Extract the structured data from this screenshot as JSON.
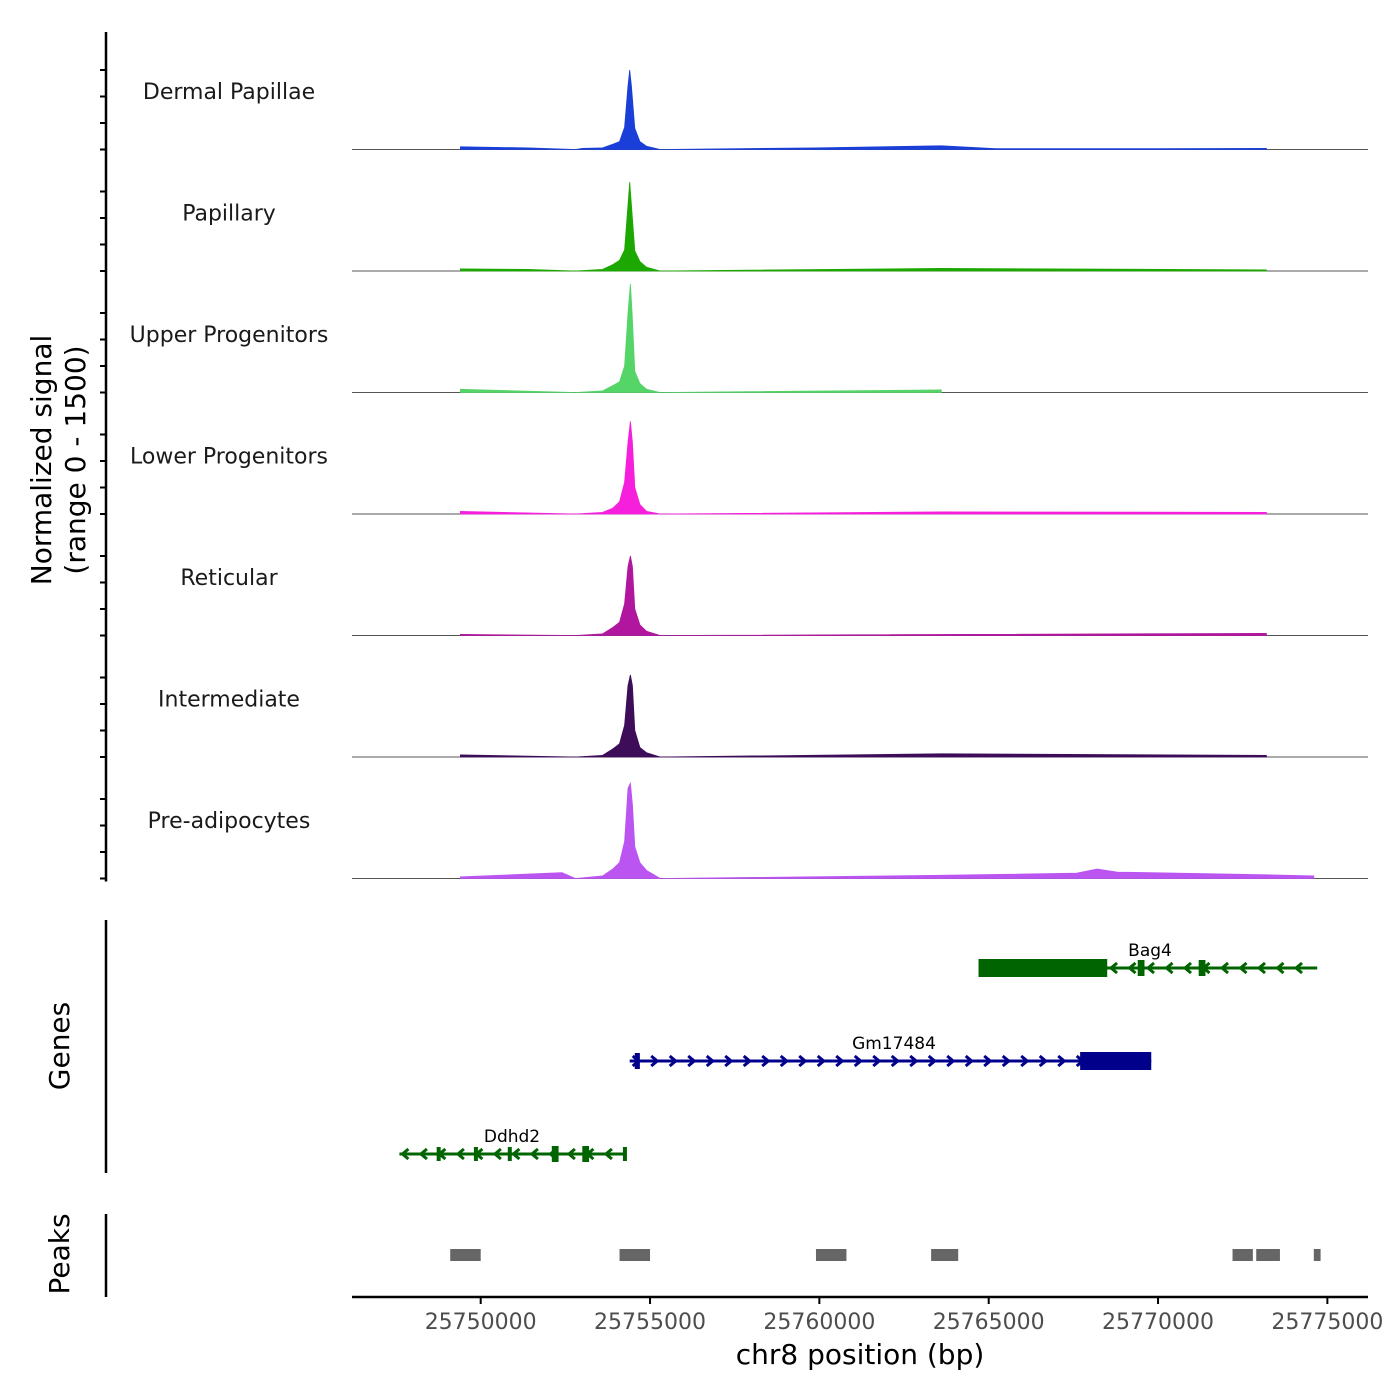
{
  "chart_data": {
    "type": "coverage",
    "chromosome": "chr8",
    "xlabel": "chr8 position (bp)",
    "xlim": [
      25746200,
      25776200
    ],
    "x_ticks": [
      25750000,
      25755000,
      25760000,
      25765000,
      25770000,
      25775000
    ],
    "x_tick_labels": [
      "25750000",
      "25755000",
      "25760000",
      "25765000",
      "25770000",
      "25775000"
    ],
    "coverage_axis_label": [
      "Normalized signal",
      "(range 0 - 1500)"
    ],
    "ylim": [
      0,
      1500
    ],
    "genes_axis_label": "Genes",
    "peaks_axis_label": "Peaks",
    "tracks": [
      {
        "name": "Dermal Papillae",
        "color": "#1a3fd8",
        "points": [
          [
            25752800,
            0
          ],
          [
            25753600,
            30
          ],
          [
            25753900,
            100
          ],
          [
            25754100,
            150
          ],
          [
            25754250,
            420
          ],
          [
            25754350,
            1200
          ],
          [
            25754400,
            1500
          ],
          [
            25754450,
            1200
          ],
          [
            25754550,
            400
          ],
          [
            25754700,
            150
          ],
          [
            25754900,
            60
          ],
          [
            25755300,
            0
          ],
          [
            25749400,
            50
          ],
          [
            25751400,
            30
          ],
          [
            25753000,
            20
          ],
          [
            25759900,
            30
          ],
          [
            25763600,
            70
          ],
          [
            25765200,
            15
          ],
          [
            25770000,
            15
          ],
          [
            25773200,
            20
          ]
        ]
      },
      {
        "name": "Papillary",
        "color": "#1ca800",
        "points": [
          [
            25752800,
            0
          ],
          [
            25753600,
            30
          ],
          [
            25753900,
            120
          ],
          [
            25754100,
            200
          ],
          [
            25754250,
            400
          ],
          [
            25754350,
            1250
          ],
          [
            25754400,
            1680
          ],
          [
            25754450,
            1250
          ],
          [
            25754550,
            380
          ],
          [
            25754700,
            180
          ],
          [
            25754900,
            70
          ],
          [
            25755300,
            0
          ],
          [
            25749400,
            40
          ],
          [
            25751400,
            30
          ],
          [
            25763600,
            50
          ],
          [
            25773200,
            20
          ]
        ]
      },
      {
        "name": "Upper Progenitors",
        "color": "#55d468",
        "points": [
          [
            25752800,
            0
          ],
          [
            25753600,
            30
          ],
          [
            25753900,
            130
          ],
          [
            25754100,
            200
          ],
          [
            25754250,
            500
          ],
          [
            25754350,
            1500
          ],
          [
            25754420,
            2050
          ],
          [
            25754470,
            1500
          ],
          [
            25754550,
            400
          ],
          [
            25754700,
            170
          ],
          [
            25754900,
            60
          ],
          [
            25755300,
            0
          ],
          [
            25749400,
            60
          ],
          [
            25763600,
            50
          ]
        ]
      },
      {
        "name": "Lower Progenitors",
        "color": "#f51fdc",
        "points": [
          [
            25752800,
            0
          ],
          [
            25753600,
            30
          ],
          [
            25753900,
            110
          ],
          [
            25754100,
            230
          ],
          [
            25754250,
            600
          ],
          [
            25754350,
            1350
          ],
          [
            25754420,
            1750
          ],
          [
            25754480,
            1350
          ],
          [
            25754550,
            500
          ],
          [
            25754700,
            180
          ],
          [
            25754900,
            50
          ],
          [
            25755300,
            0
          ],
          [
            25749400,
            50
          ],
          [
            25763600,
            40
          ],
          [
            25773200,
            30
          ]
        ]
      },
      {
        "name": "Reticular",
        "color": "#b0169e",
        "points": [
          [
            25752800,
            0
          ],
          [
            25753600,
            30
          ],
          [
            25753900,
            150
          ],
          [
            25754100,
            250
          ],
          [
            25754250,
            600
          ],
          [
            25754350,
            1300
          ],
          [
            25754420,
            1500
          ],
          [
            25754480,
            1300
          ],
          [
            25754550,
            500
          ],
          [
            25754700,
            200
          ],
          [
            25754900,
            80
          ],
          [
            25755300,
            0
          ],
          [
            25749400,
            20
          ],
          [
            25773200,
            40
          ]
        ]
      },
      {
        "name": "Intermediate",
        "color": "#3d0d59",
        "points": [
          [
            25752800,
            0
          ],
          [
            25753600,
            30
          ],
          [
            25753900,
            150
          ],
          [
            25754100,
            250
          ],
          [
            25754250,
            600
          ],
          [
            25754350,
            1350
          ],
          [
            25754420,
            1550
          ],
          [
            25754480,
            1350
          ],
          [
            25754550,
            500
          ],
          [
            25754700,
            180
          ],
          [
            25754900,
            80
          ],
          [
            25755300,
            0
          ],
          [
            25749400,
            40
          ],
          [
            25763600,
            60
          ],
          [
            25773200,
            30
          ]
        ]
      },
      {
        "name": "Pre-adipocytes",
        "color": "#bb55f2",
        "points": [
          [
            25752800,
            0
          ],
          [
            25753600,
            50
          ],
          [
            25753900,
            180
          ],
          [
            25754100,
            300
          ],
          [
            25754250,
            700
          ],
          [
            25754350,
            1700
          ],
          [
            25754420,
            1800
          ],
          [
            25754480,
            1400
          ],
          [
            25754550,
            600
          ],
          [
            25754700,
            300
          ],
          [
            25754900,
            150
          ],
          [
            25755300,
            0
          ],
          [
            25749400,
            30
          ],
          [
            25752400,
            110
          ],
          [
            25763600,
            60
          ],
          [
            25767600,
            100
          ],
          [
            25768200,
            180
          ],
          [
            25768800,
            120
          ],
          [
            25773200,
            70
          ],
          [
            25774600,
            50
          ]
        ]
      }
    ],
    "genes": [
      {
        "name": "Bag4",
        "strand": "-",
        "color": "#006400",
        "start": 25764700,
        "end": 25774700,
        "exons": [
          [
            25764700,
            25768500,
            "thick"
          ],
          [
            25769400,
            25769600,
            "thin"
          ],
          [
            25771200,
            25771400,
            "thin"
          ]
        ]
      },
      {
        "name": "Gm17484",
        "strand": "+",
        "color": "#00008b",
        "start": 25754400,
        "end": 25769800,
        "exons": [
          [
            25754550,
            25754700,
            "thin"
          ],
          [
            25767700,
            25769800,
            "thick"
          ]
        ]
      },
      {
        "name": "Ddhd2",
        "strand": "-",
        "color": "#006400",
        "start": 25747600,
        "end": 25754300,
        "exons": [
          [
            25748700,
            25748800,
            "tick"
          ],
          [
            25749800,
            25749900,
            "tick"
          ],
          [
            25750800,
            25750900,
            "tick"
          ],
          [
            25752100,
            25752300,
            "thin"
          ],
          [
            25753000,
            25753200,
            "thin"
          ],
          [
            25754200,
            25754300,
            "tick"
          ]
        ]
      }
    ],
    "peaks": [
      {
        "start": 25749100,
        "end": 25750000
      },
      {
        "start": 25754100,
        "end": 25755000
      },
      {
        "start": 25759900,
        "end": 25760800
      },
      {
        "start": 25763300,
        "end": 25764100
      },
      {
        "start": 25772200,
        "end": 25772800
      },
      {
        "start": 25772900,
        "end": 25773600
      },
      {
        "start": 25774600,
        "end": 25774800
      }
    ]
  }
}
